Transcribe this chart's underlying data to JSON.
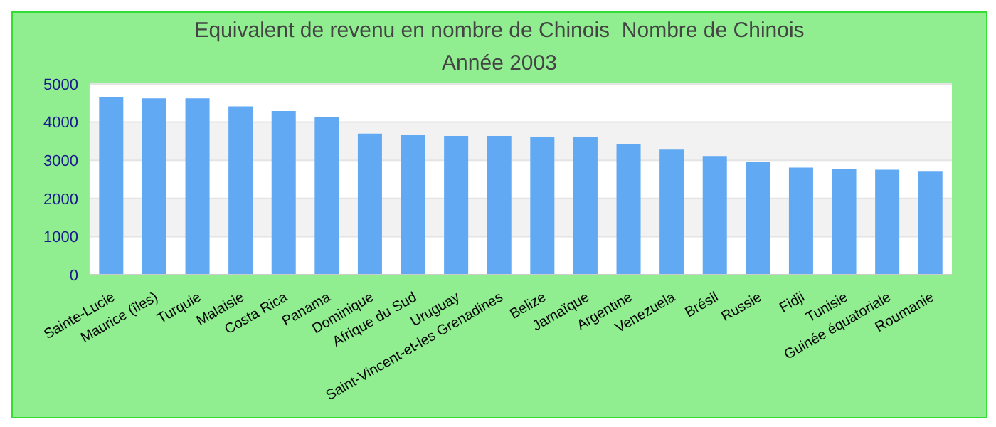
{
  "chart_data": {
    "type": "bar",
    "title": "Equivalent de revenu en nombre de Chinois  Nombre de Chinois",
    "subtitle": "Année 2003",
    "categories": [
      "Sainte-Lucie",
      "Maurice (îles)",
      "Turquie",
      "Malaisie",
      "Costa Rica",
      "Panama",
      "Dominique",
      "Afrique du Sud",
      "Uruguay",
      "Saint-Vincent-et-les Grenadines",
      "Belize",
      "Jamaïque",
      "Argentine",
      "Venezuela",
      "Brésil",
      "Russie",
      "Fidji",
      "Tunisie",
      "Guinée équatoriale",
      "Roumanie"
    ],
    "values": [
      4650,
      4620,
      4620,
      4410,
      4290,
      4140,
      3700,
      3670,
      3640,
      3640,
      3610,
      3610,
      3430,
      3280,
      3110,
      2960,
      2810,
      2780,
      2750,
      2720
    ],
    "color": "#61a9f3",
    "ylim": [
      0,
      5000
    ],
    "yticks": [
      0,
      1000,
      2000,
      3000,
      4000,
      5000
    ],
    "grid": "y"
  }
}
